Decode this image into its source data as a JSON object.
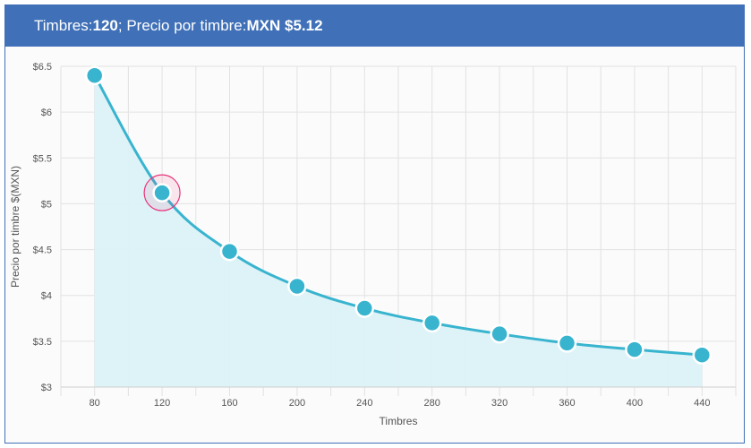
{
  "header": {
    "label_units": "Timbres:",
    "units_value": "120",
    "separator": "; ",
    "label_price": "Precio por timbre:",
    "price_value": "MXN $5.12"
  },
  "chart_data": {
    "type": "line",
    "x": [
      80,
      120,
      160,
      200,
      240,
      280,
      320,
      360,
      400,
      440
    ],
    "series": [
      {
        "values": [
          6.4,
          5.12,
          4.48,
          4.1,
          3.86,
          3.7,
          3.58,
          3.48,
          3.41,
          3.35
        ]
      }
    ],
    "selected_index": 1,
    "xlabel": "Timbres",
    "ylabel": "Precio por timbre $(MXN)",
    "ylim": [
      3,
      6.5
    ],
    "xlim": [
      60,
      460
    ],
    "yticks": [
      3,
      3.5,
      4,
      4.5,
      5,
      5.5,
      6,
      6.5
    ],
    "ytick_labels": [
      "$3",
      "$3.5",
      "$4",
      "$4.5",
      "$5",
      "$5.5",
      "$6",
      "$6.5"
    ],
    "xtick_labels": [
      "80",
      "120",
      "160",
      "200",
      "240",
      "280",
      "320",
      "360",
      "400",
      "440"
    ],
    "grid": true,
    "colors": {
      "line": "#39b4cf",
      "area": "#dcf2f8",
      "highlight": "#e8347a",
      "grid": "#e2e2e2"
    }
  }
}
